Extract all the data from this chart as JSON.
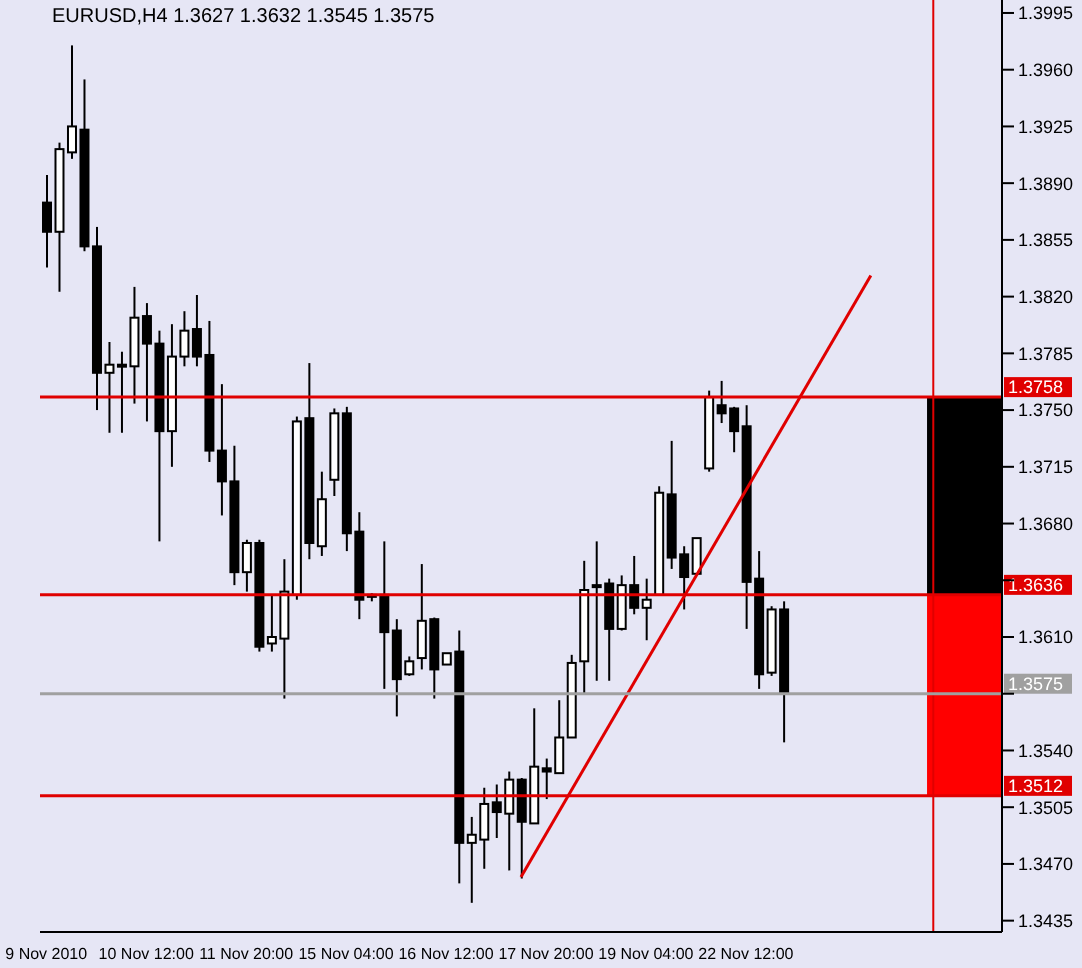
{
  "chart_data": {
    "type": "candlestick",
    "title": "EURUSD,H4  1.3627 1.3632 1.3545 1.3575",
    "categories": [
      "9 Nov 2010",
      null,
      null,
      null,
      null,
      null,
      null,
      null,
      "10 Nov 12:00",
      null,
      null,
      null,
      null,
      null,
      null,
      null,
      "11 Nov 20:00",
      null,
      null,
      null,
      null,
      null,
      null,
      null,
      "15 Nov 04:00",
      null,
      null,
      null,
      null,
      null,
      null,
      null,
      "16 Nov 12:00",
      null,
      null,
      null,
      null,
      null,
      null,
      null,
      "17 Nov 20:00",
      null,
      null,
      null,
      null,
      null,
      null,
      null,
      "19 Nov 04:00",
      null,
      null,
      null,
      null,
      null,
      null,
      null,
      "22 Nov 12:00",
      null,
      null,
      null,
      null,
      null,
      null,
      null,
      null,
      null,
      null,
      null,
      null,
      null,
      null,
      null,
      null,
      null,
      null,
      null,
      null
    ],
    "ohlc": [
      [
        1.3878,
        1.3895,
        1.3838,
        1.386
      ],
      [
        1.386,
        1.3915,
        1.3823,
        1.3911
      ],
      [
        1.3909,
        1.3975,
        1.3905,
        1.3925
      ],
      [
        1.3923,
        1.3954,
        1.3848,
        1.3851
      ],
      [
        1.3851,
        1.3863,
        1.375,
        1.3773
      ],
      [
        1.3773,
        1.3792,
        1.3736,
        1.3778
      ],
      [
        1.3778,
        1.3786,
        1.3736,
        1.3777
      ],
      [
        1.3777,
        1.3826,
        1.3754,
        1.3807
      ],
      [
        1.3808,
        1.3816,
        1.3743,
        1.3791
      ],
      [
        1.3791,
        1.3799,
        1.3669,
        1.3737
      ],
      [
        1.3737,
        1.3803,
        1.3715,
        1.3783
      ],
      [
        1.3783,
        1.3811,
        1.3777,
        1.3799
      ],
      [
        1.38,
        1.3821,
        1.3777,
        1.3783
      ],
      [
        1.3784,
        1.3805,
        1.3718,
        1.3725
      ],
      [
        1.3725,
        1.3766,
        1.3685,
        1.3706
      ],
      [
        1.3706,
        1.3728,
        1.3642,
        1.365
      ],
      [
        1.365,
        1.367,
        1.3638,
        1.3668
      ],
      [
        1.3668,
        1.367,
        1.3601,
        1.3604
      ],
      [
        1.3606,
        1.3636,
        1.3601,
        1.361
      ],
      [
        1.3609,
        1.3658,
        1.3572,
        1.3638
      ],
      [
        1.3636,
        1.3746,
        1.3633,
        1.3743
      ],
      [
        1.3745,
        1.3779,
        1.3658,
        1.3668
      ],
      [
        1.3666,
        1.3712,
        1.366,
        1.3695
      ],
      [
        1.3707,
        1.3751,
        1.3697,
        1.3748
      ],
      [
        1.3748,
        1.3752,
        1.3663,
        1.3674
      ],
      [
        1.3675,
        1.3687,
        1.3621,
        1.3633
      ],
      [
        1.3636,
        1.3637,
        1.3632,
        1.3635
      ],
      [
        1.3636,
        1.3669,
        1.3578,
        1.3613
      ],
      [
        1.3614,
        1.3621,
        1.3561,
        1.3584
      ],
      [
        1.3587,
        1.3598,
        1.3586,
        1.3595
      ],
      [
        1.3597,
        1.3655,
        1.359,
        1.362
      ],
      [
        1.3621,
        1.3622,
        1.3572,
        1.359
      ],
      [
        1.3593,
        1.36,
        1.3593,
        1.36
      ],
      [
        1.3601,
        1.3614,
        1.3458,
        1.3483
      ],
      [
        1.3483,
        1.3499,
        1.3446,
        1.3488
      ],
      [
        1.3485,
        1.3517,
        1.3467,
        1.3507
      ],
      [
        1.3508,
        1.3519,
        1.3486,
        1.3502
      ],
      [
        1.3501,
        1.3527,
        1.3466,
        1.3522
      ],
      [
        1.3522,
        1.3523,
        1.3461,
        1.3496
      ],
      [
        1.3495,
        1.3566,
        1.3495,
        1.353
      ],
      [
        1.3529,
        1.3535,
        1.351,
        1.3527
      ],
      [
        1.3526,
        1.3571,
        1.3526,
        1.3548
      ],
      [
        1.3548,
        1.3599,
        1.3548,
        1.3594
      ],
      [
        1.3595,
        1.3657,
        1.3575,
        1.3639
      ],
      [
        1.3642,
        1.3669,
        1.3583,
        1.3641
      ],
      [
        1.3643,
        1.3646,
        1.3583,
        1.3615
      ],
      [
        1.3615,
        1.3648,
        1.3614,
        1.3642
      ],
      [
        1.3642,
        1.366,
        1.3624,
        1.3628
      ],
      [
        1.3628,
        1.3646,
        1.3608,
        1.3633
      ],
      [
        1.3636,
        1.3703,
        1.3636,
        1.3699
      ],
      [
        1.3698,
        1.3731,
        1.3652,
        1.3659
      ],
      [
        1.3661,
        1.3666,
        1.3627,
        1.3647
      ],
      [
        1.3649,
        1.3671,
        1.3649,
        1.3671
      ],
      [
        1.3714,
        1.3762,
        1.3712,
        1.3758
      ],
      [
        1.3753,
        1.3768,
        1.3742,
        1.3748
      ],
      [
        1.3751,
        1.3752,
        1.3724,
        1.3737
      ],
      [
        1.374,
        1.3753,
        1.3615,
        1.3644
      ],
      [
        1.3646,
        1.3663,
        1.3578,
        1.3587
      ],
      [
        1.3588,
        1.3629,
        1.3586,
        1.3627
      ],
      [
        1.3627,
        1.3632,
        1.3545,
        1.3575
      ],
      null,
      null,
      null,
      null,
      null,
      null,
      null,
      null,
      null,
      null,
      null,
      null,
      null,
      null,
      null,
      null,
      null
    ],
    "series": [
      {
        "type": "line",
        "values": [
          null,
          null,
          null,
          null,
          null,
          null,
          null,
          null,
          null,
          null,
          null,
          null,
          null,
          null,
          null,
          null,
          null,
          null,
          null,
          null,
          null,
          null,
          null,
          null,
          null,
          null,
          null,
          null,
          null,
          null,
          null,
          null,
          null,
          null,
          null,
          null,
          null,
          null,
          1.3462,
          null,
          null,
          null,
          null,
          null,
          null,
          null,
          null,
          null,
          null,
          null,
          null,
          null,
          null,
          null,
          null,
          null,
          null,
          null,
          null,
          null,
          null,
          null,
          null,
          null,
          null,
          null,
          1.3833,
          null,
          null,
          null,
          null,
          null,
          null,
          null,
          null,
          null,
          null
        ],
        "color": "#e00000"
      }
    ],
    "ylim": [
      1.3428,
      1.4003
    ],
    "yticks": [
      1.3435,
      {
        "value": 1.347,
        "label": "1.3470"
      },
      1.3505,
      {
        "value": 1.354,
        "label": "1.3540"
      },
      {
        "value": 1.3575,
        "label": null
      },
      {
        "value": 1.361,
        "label": "1.3610"
      },
      {
        "value": 1.3645,
        "label": null
      },
      {
        "value": 1.368,
        "label": "1.3680"
      },
      1.3715,
      {
        "value": 1.375,
        "label": "1.3750"
      },
      1.3785,
      {
        "value": 1.382,
        "label": "1.3820"
      },
      1.3855,
      {
        "value": 1.389,
        "label": "1.3890"
      },
      1.3925,
      {
        "value": 1.396,
        "label": "1.3960"
      },
      1.3995
    ],
    "ref_lines": [
      {
        "axis": "y",
        "value": 1.3758,
        "label": "1.3758",
        "color": "#e00000"
      },
      {
        "axis": "y",
        "value": 1.3636,
        "label": "1.3636",
        "color": "#e00000"
      },
      {
        "axis": "y",
        "value": 1.3512,
        "label": "1.3512",
        "color": "#e00000"
      },
      {
        "axis": "y",
        "value": 1.3575,
        "label": "1.3575",
        "color": "#a0a0a0"
      }
    ],
    "bands": [
      {
        "axis": "y",
        "from": 1.3636,
        "to": 1.3758,
        "color": "#000000"
      },
      {
        "axis": "y",
        "from": 1.3512,
        "to": 1.3636,
        "color": "#ff0000"
      }
    ],
    "grid": false,
    "legend": false
  }
}
